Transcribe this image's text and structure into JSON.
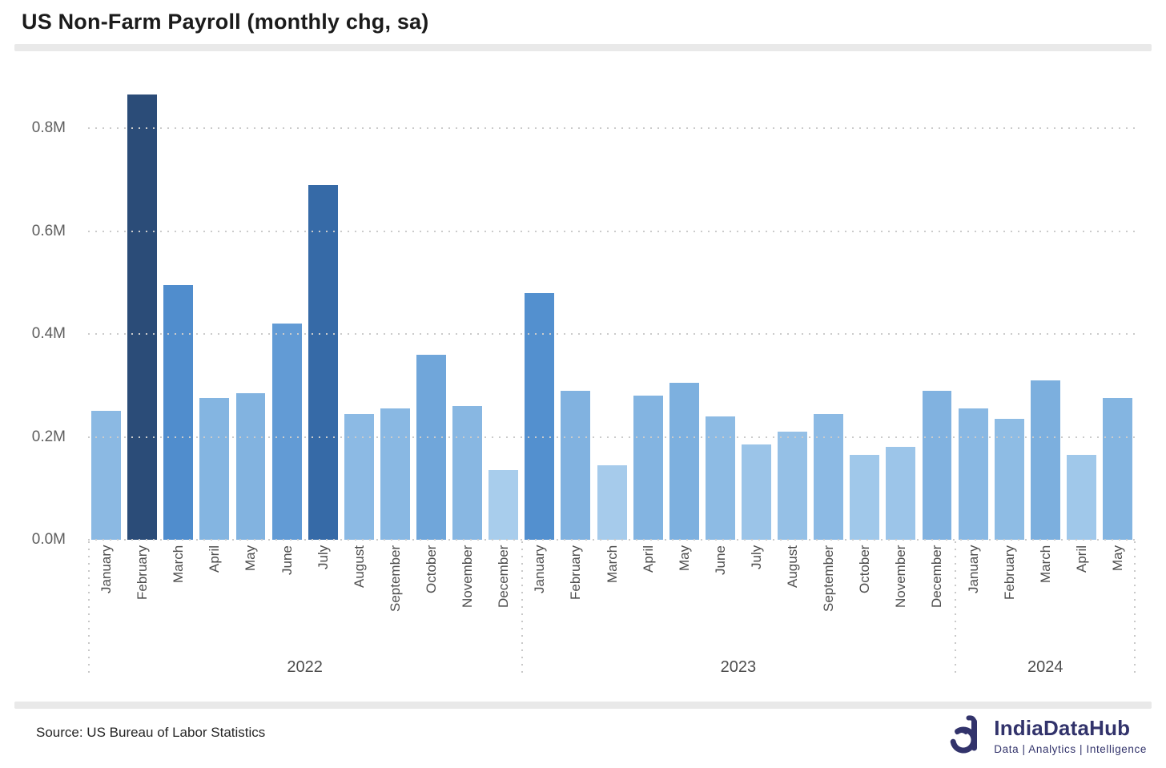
{
  "header": {
    "title": "US Non-Farm Payroll (monthly chg, sa)"
  },
  "footer": {
    "source": "Source: US Bureau of Labor Statistics",
    "brand_name": "IndiaDataHub",
    "brand_tagline": "Data | Analytics | Intelligence"
  },
  "colors": {
    "bar_min": "#A8CDEC",
    "bar_max": "#2B4C78",
    "gridline": "#CBCBCB",
    "axis_text": "#5E5E5E",
    "title_text": "#1B1B1B",
    "brand": "#32336B"
  },
  "chart_data": {
    "type": "bar",
    "title": "US Non-Farm Payroll (monthly chg, sa)",
    "value_unit": "millions (M)",
    "ylim": [
      0,
      0.9
    ],
    "yticks": [
      "0.0M",
      "0.2M",
      "0.4M",
      "0.6M",
      "0.8M"
    ],
    "grid": "horizontal dotted",
    "legend": false,
    "color_encoding": "bar color darkens with value (light #A8CDEC at 0.135M to dark #2B4C78 at 0.865M)",
    "groups": [
      {
        "year": "2022",
        "months": [
          "January",
          "February",
          "March",
          "April",
          "May",
          "June",
          "July",
          "August",
          "September",
          "October",
          "November",
          "December"
        ],
        "values": [
          0.25,
          0.865,
          0.495,
          0.275,
          0.285,
          0.42,
          0.69,
          0.245,
          0.255,
          0.36,
          0.26,
          0.135
        ]
      },
      {
        "year": "2023",
        "months": [
          "January",
          "February",
          "March",
          "April",
          "May",
          "June",
          "July",
          "August",
          "September",
          "October",
          "November",
          "December"
        ],
        "values": [
          0.48,
          0.29,
          0.145,
          0.28,
          0.305,
          0.24,
          0.185,
          0.21,
          0.245,
          0.165,
          0.18,
          0.29
        ]
      },
      {
        "year": "2024",
        "months": [
          "January",
          "February",
          "March",
          "April",
          "May"
        ],
        "values": [
          0.255,
          0.235,
          0.31,
          0.165,
          0.275
        ]
      }
    ]
  }
}
